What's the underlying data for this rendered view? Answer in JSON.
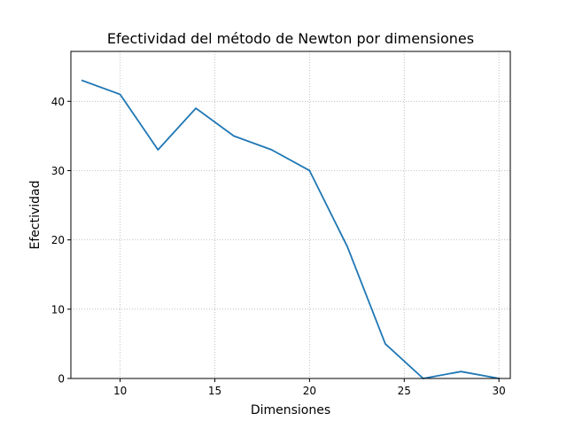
{
  "chart_data": {
    "type": "line",
    "title": "Efectividad del método de Newton por dimensiones",
    "xlabel": "Dimensiones",
    "ylabel": "Efectividad",
    "xlim": [
      7.4,
      30.6
    ],
    "ylim": [
      0,
      47.2
    ],
    "xticks": [
      10,
      15,
      20,
      25,
      30
    ],
    "yticks": [
      0,
      10,
      20,
      30,
      40
    ],
    "grid": true,
    "series": [
      {
        "x": [
          8,
          10,
          12,
          14,
          16,
          18,
          20,
          22,
          24,
          26,
          28,
          30
        ],
        "values": [
          43,
          41,
          33,
          39,
          35,
          33,
          30,
          19,
          5,
          0,
          1,
          0
        ]
      }
    ],
    "colors": {
      "line": "#1f77b4",
      "grid": "#b0b0b0",
      "axes": "#000000"
    }
  }
}
